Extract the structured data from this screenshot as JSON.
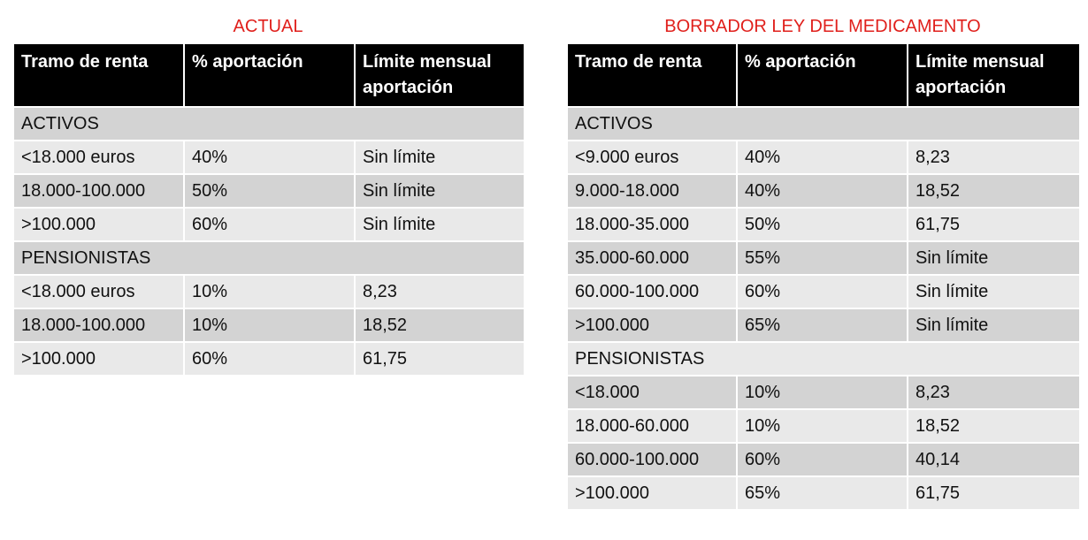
{
  "tables": [
    {
      "title": "ACTUAL",
      "header": [
        "Tramo de renta",
        "% aportación",
        "Límite mensual aportación"
      ],
      "rows": [
        [
          "ACTIVOS"
        ],
        [
          "<18.000 euros",
          "40%",
          "Sin límite"
        ],
        [
          "18.000-100.000",
          "50%",
          "Sin límite"
        ],
        [
          ">100.000",
          "60%",
          "Sin límite"
        ],
        [
          "PENSIONISTAS"
        ],
        [
          "<18.000 euros",
          "10%",
          "8,23"
        ],
        [
          "18.000-100.000",
          "10%",
          "18,52"
        ],
        [
          ">100.000",
          "60%",
          "61,75"
        ]
      ]
    },
    {
      "title": "BORRADOR LEY DEL MEDICAMENTO",
      "header": [
        "Tramo de renta",
        "% aportación",
        "Límite mensual aportación"
      ],
      "rows": [
        [
          "ACTIVOS"
        ],
        [
          "<9.000 euros",
          "40%",
          "8,23"
        ],
        [
          "9.000-18.000",
          "40%",
          "18,52"
        ],
        [
          "18.000-35.000",
          "50%",
          "61,75"
        ],
        [
          "35.000-60.000",
          "55%",
          "Sin límite"
        ],
        [
          "60.000-100.000",
          "60%",
          "Sin límite"
        ],
        [
          ">100.000",
          "65%",
          "Sin límite"
        ],
        [
          "PENSIONISTAS"
        ],
        [
          "<18.000",
          "10%",
          "8,23"
        ],
        [
          "18.000-60.000",
          "10%",
          "18,52"
        ],
        [
          "60.000-100.000",
          "60%",
          "40,14"
        ],
        [
          ">100.000",
          "65%",
          "61,75"
        ]
      ]
    }
  ]
}
